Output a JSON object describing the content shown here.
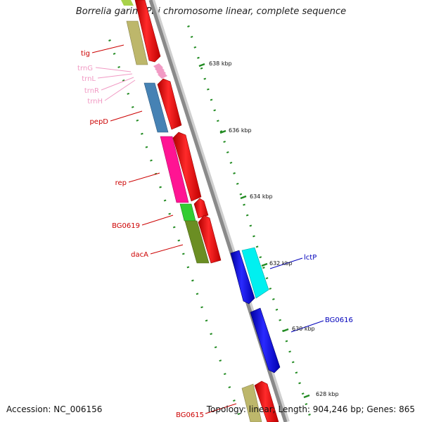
{
  "title": "Borrelia garinii PBi chromosome linear, complete sequence",
  "accession": "Accession: NC_006156",
  "topology": "Topology: linear; Length: 904,246 bp; Genes: 865",
  "scale_ticks": [
    {
      "label": "638 kbp"
    },
    {
      "label": "636 kbp"
    },
    {
      "label": "634 kbp"
    },
    {
      "label": "632 kbp"
    },
    {
      "label": "630 kbp"
    },
    {
      "label": "628 kbp"
    }
  ],
  "genes": [
    {
      "name": "tig",
      "color": "#cc0000"
    },
    {
      "name": "trnG",
      "color": "#f19ac4"
    },
    {
      "name": "trnL",
      "color": "#f19ac4"
    },
    {
      "name": "trnR",
      "color": "#f19ac4"
    },
    {
      "name": "trnH",
      "color": "#f19ac4"
    },
    {
      "name": "pepD",
      "color": "#cc0000"
    },
    {
      "name": "rep",
      "color": "#cc0000"
    },
    {
      "name": "BG0619",
      "color": "#cc0000"
    },
    {
      "name": "dacA",
      "color": "#cc0000"
    },
    {
      "name": "lctP",
      "color": "#0000bb"
    },
    {
      "name": "BG0616",
      "color": "#0000bb"
    },
    {
      "name": "BG0615",
      "color": "#cc0000"
    }
  ],
  "colors": {
    "backbone": "#888888",
    "forward_arrow": "#ff0000",
    "reverse_arrow": "#0000ff",
    "tick": "#228b22"
  }
}
